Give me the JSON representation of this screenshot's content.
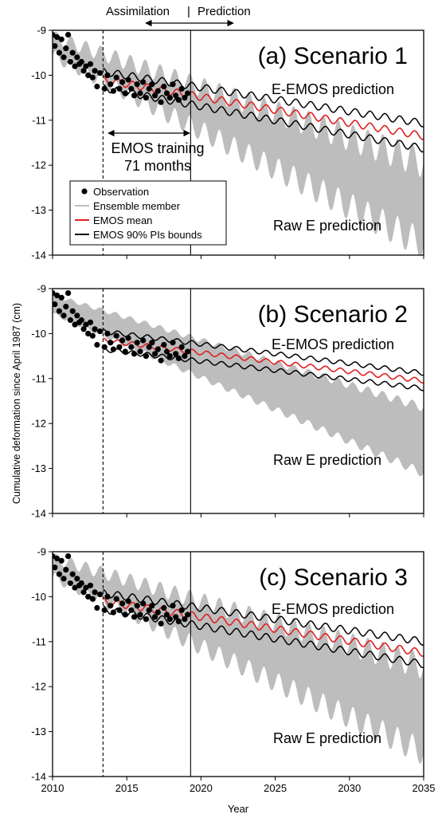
{
  "chart_data": [
    {
      "type": "line",
      "title": "(a) Scenario 1",
      "xlim": [
        2010,
        2035
      ],
      "ylim": [
        -14,
        -9
      ],
      "yticks": [
        "-9",
        "-10",
        "-11",
        "-12",
        "-13",
        "-14"
      ],
      "assimilation_end": 2019.3,
      "emos_training_start": 2013.4,
      "annotations": {
        "top": "E-EMOS prediction",
        "bottom": "Raw E prediction"
      },
      "observations_x": [
        2010.0,
        2010.15,
        2010.3,
        2010.45,
        2010.6,
        2010.75,
        2010.9,
        2011.05,
        2011.2,
        2011.35,
        2011.5,
        2011.65,
        2011.8,
        2011.95,
        2012.1,
        2012.25,
        2012.4,
        2012.55,
        2012.7,
        2012.85,
        2013.0,
        2013.2,
        2013.5,
        2013.7,
        2013.9,
        2014.1,
        2014.3,
        2014.5,
        2014.7,
        2014.9,
        2015.1,
        2015.3,
        2015.5,
        2015.7,
        2015.9,
        2016.1,
        2016.3,
        2016.5,
        2016.7,
        2016.9,
        2017.1,
        2017.3,
        2017.5,
        2017.7,
        2017.9,
        2018.1,
        2018.3,
        2018.5,
        2018.7,
        2018.9,
        2019.1
      ],
      "observations_y": [
        -9.1,
        -9.35,
        -9.15,
        -9.5,
        -9.2,
        -9.6,
        -9.4,
        -9.1,
        -9.7,
        -9.5,
        -9.8,
        -9.6,
        -9.75,
        -9.7,
        -9.9,
        -9.8,
        -10.0,
        -9.75,
        -10.05,
        -9.9,
        -10.25,
        -9.95,
        -10.3,
        -10.0,
        -10.2,
        -10.35,
        -10.05,
        -10.3,
        -10.15,
        -10.4,
        -10.1,
        -10.3,
        -10.45,
        -10.2,
        -10.4,
        -10.15,
        -10.5,
        -10.3,
        -10.2,
        -10.45,
        -10.35,
        -10.6,
        -10.25,
        -10.4,
        -10.5,
        -10.2,
        -10.45,
        -10.55,
        -10.3,
        -10.5,
        -10.4
      ],
      "mean_curve": {
        "start_value": -10.1,
        "end_value": -11.35,
        "seasonal_amplitude": 0.08
      },
      "pi_bounds": {
        "start_halfwidth": 0.18,
        "end_halfwidth": 0.28
      },
      "raw_ensemble": {
        "start_value": -9.3,
        "upper_end": -12.1,
        "lower_end": -13.5,
        "seasonal_amplitude": 0.35
      }
    },
    {
      "type": "line",
      "title": "(b) Scenario 2",
      "xlim": [
        2010,
        2035
      ],
      "ylim": [
        -14,
        -9
      ],
      "yticks": [
        "-9",
        "-10",
        "-11",
        "-12",
        "-13",
        "-14"
      ],
      "assimilation_end": 2019.3,
      "emos_training_start": 2013.4,
      "annotations": {
        "top": "E-EMOS prediction",
        "bottom": "Raw E prediction"
      },
      "observations_x": [
        2010.0,
        2010.15,
        2010.3,
        2010.45,
        2010.6,
        2010.75,
        2010.9,
        2011.05,
        2011.2,
        2011.35,
        2011.5,
        2011.65,
        2011.8,
        2011.95,
        2012.1,
        2012.25,
        2012.4,
        2012.55,
        2012.7,
        2012.85,
        2013.0,
        2013.2,
        2013.5,
        2013.7,
        2013.9,
        2014.1,
        2014.3,
        2014.5,
        2014.7,
        2014.9,
        2015.1,
        2015.3,
        2015.5,
        2015.7,
        2015.9,
        2016.1,
        2016.3,
        2016.5,
        2016.7,
        2016.9,
        2017.1,
        2017.3,
        2017.5,
        2017.7,
        2017.9,
        2018.1,
        2018.3,
        2018.5,
        2018.7,
        2018.9,
        2019.1
      ],
      "observations_y": [
        -9.1,
        -9.35,
        -9.15,
        -9.5,
        -9.2,
        -9.6,
        -9.4,
        -9.1,
        -9.7,
        -9.5,
        -9.8,
        -9.6,
        -9.75,
        -9.7,
        -9.9,
        -9.8,
        -10.0,
        -9.75,
        -10.05,
        -9.9,
        -10.25,
        -9.95,
        -10.3,
        -10.0,
        -10.2,
        -10.35,
        -10.05,
        -10.3,
        -10.15,
        -10.4,
        -10.1,
        -10.3,
        -10.45,
        -10.2,
        -10.4,
        -10.15,
        -10.5,
        -10.3,
        -10.2,
        -10.45,
        -10.35,
        -10.6,
        -10.25,
        -10.4,
        -10.5,
        -10.2,
        -10.45,
        -10.55,
        -10.3,
        -10.5,
        -10.4
      ],
      "mean_curve": {
        "start_value": -10.15,
        "end_value": -11.05,
        "seasonal_amplitude": 0.05
      },
      "pi_bounds": {
        "start_halfwidth": 0.2,
        "end_halfwidth": 0.17
      },
      "raw_ensemble": {
        "start_value": -9.3,
        "upper_end": -11.8,
        "lower_end": -12.85,
        "seasonal_amplitude": 0.1
      }
    },
    {
      "type": "line",
      "title": "(c) Scenario 3",
      "xlim": [
        2010,
        2035
      ],
      "ylim": [
        -14,
        -9
      ],
      "yticks": [
        "-9",
        "-10",
        "-11",
        "-12",
        "-13",
        "-14"
      ],
      "xticks": [
        "2010",
        "2015",
        "2020",
        "2025",
        "2030",
        "2035"
      ],
      "xlabel": "Year",
      "assimilation_end": 2019.3,
      "emos_training_start": 2013.4,
      "annotations": {
        "top": "E-EMOS prediction",
        "bottom": "Raw E prediction"
      },
      "observations_x": [
        2010.0,
        2010.15,
        2010.3,
        2010.45,
        2010.6,
        2010.75,
        2010.9,
        2011.05,
        2011.2,
        2011.35,
        2011.5,
        2011.65,
        2011.8,
        2011.95,
        2012.1,
        2012.25,
        2012.4,
        2012.55,
        2012.7,
        2012.85,
        2013.0,
        2013.2,
        2013.5,
        2013.7,
        2013.9,
        2014.1,
        2014.3,
        2014.5,
        2014.7,
        2014.9,
        2015.1,
        2015.3,
        2015.5,
        2015.7,
        2015.9,
        2016.1,
        2016.3,
        2016.5,
        2016.7,
        2016.9,
        2017.1,
        2017.3,
        2017.5,
        2017.7,
        2017.9,
        2018.1,
        2018.3,
        2018.5,
        2018.7,
        2018.9,
        2019.1
      ],
      "observations_y": [
        -9.1,
        -9.35,
        -9.15,
        -9.5,
        -9.2,
        -9.6,
        -9.4,
        -9.1,
        -9.7,
        -9.5,
        -9.8,
        -9.6,
        -9.75,
        -9.7,
        -9.9,
        -9.8,
        -10.0,
        -9.75,
        -10.05,
        -9.9,
        -10.25,
        -9.95,
        -10.3,
        -10.0,
        -10.2,
        -10.35,
        -10.05,
        -10.3,
        -10.15,
        -10.4,
        -10.1,
        -10.3,
        -10.45,
        -10.2,
        -10.4,
        -10.15,
        -10.5,
        -10.3,
        -10.2,
        -10.45,
        -10.35,
        -10.6,
        -10.25,
        -10.4,
        -10.5,
        -10.2,
        -10.45,
        -10.55,
        -10.3,
        -10.5,
        -10.4
      ],
      "mean_curve": {
        "start_value": -10.1,
        "end_value": -11.25,
        "seasonal_amplitude": 0.08
      },
      "pi_bounds": {
        "start_halfwidth": 0.18,
        "end_halfwidth": 0.25
      },
      "raw_ensemble": {
        "start_value": -9.3,
        "upper_end": -11.7,
        "lower_end": -13.2,
        "seasonal_amplitude": 0.3
      }
    }
  ],
  "header": {
    "assimilation": "Assimilation",
    "separator": "|",
    "prediction": "Prediction"
  },
  "training_label": {
    "line1": "EMOS training",
    "line2": "71 months"
  },
  "ylabel": "Cumulative deformation since April 1987 (cm)",
  "legend": [
    {
      "label": "Observation",
      "kind": "dot",
      "color": "#000000"
    },
    {
      "label": "Ensemble member",
      "kind": "line",
      "color": "#bdbdbd"
    },
    {
      "label": "EMOS mean",
      "kind": "line",
      "color": "#e02020"
    },
    {
      "label": "EMOS 90% PIs bounds",
      "kind": "line",
      "color": "#000000"
    }
  ],
  "colors": {
    "ensemble": "#bdbdbd",
    "mean": "#e02020",
    "bounds": "#000000",
    "observation": "#000000"
  }
}
